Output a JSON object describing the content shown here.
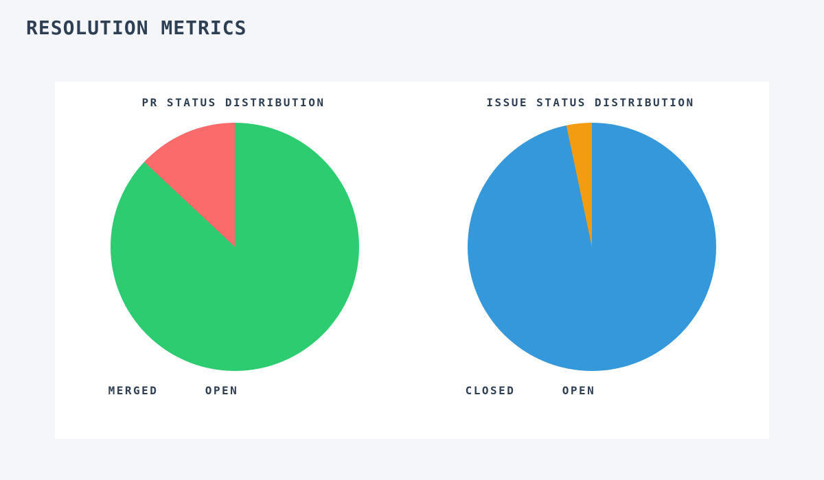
{
  "page": {
    "title": "RESOLUTION METRICS",
    "background_color": "#f4f6fa",
    "card_color": "#ffffff",
    "text_color": "#2e3f54"
  },
  "chart_data": [
    {
      "type": "pie",
      "title": "PR STATUS DISTRIBUTION",
      "labels": [
        "MERGED",
        "OPEN"
      ],
      "values": [
        87,
        13
      ],
      "colors": [
        "#2ecc71",
        "#fb6b6b"
      ],
      "start_angle_deg": 0,
      "direction": "clockwise",
      "legend_position": "below",
      "notes": "MERGED green slice starts at 12 o'clock sweeping clockwise ~313deg; OPEN salmon slice fills remaining ~47deg in upper-left"
    },
    {
      "type": "pie",
      "title": "ISSUE STATUS DISTRIBUTION",
      "labels": [
        "CLOSED",
        "OPEN"
      ],
      "values": [
        96.7,
        3.3
      ],
      "colors": [
        "#3498db",
        "#f39c12"
      ],
      "start_angle_deg": 0,
      "direction": "clockwise",
      "legend_position": "below",
      "notes": "CLOSED blue slice starts at 12 o'clock sweeping clockwise ~348deg; OPEN orange sliver fills remaining ~12deg just left of 12 o'clock"
    }
  ]
}
